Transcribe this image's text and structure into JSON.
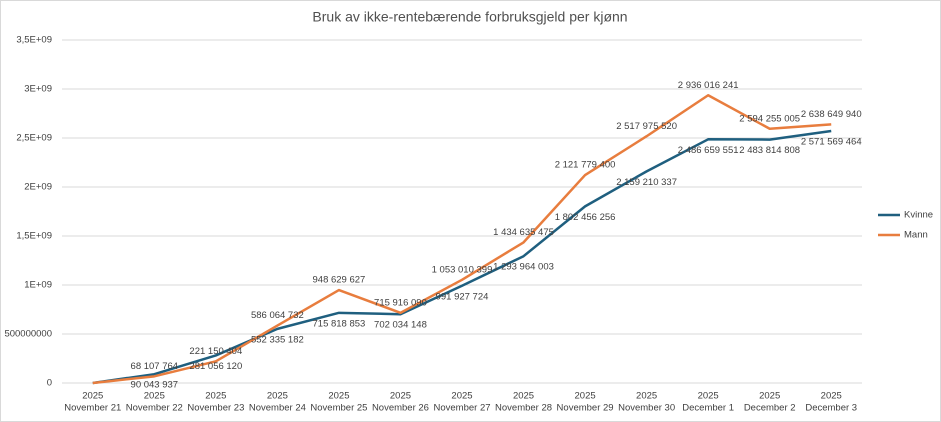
{
  "chart_data": {
    "type": "line",
    "title": "Bruk av ikke-rentebærende forbruksgjeld per kjønn",
    "categories": [
      [
        "2025",
        "November 21"
      ],
      [
        "2025",
        "November 22"
      ],
      [
        "2025",
        "November 23"
      ],
      [
        "2025",
        "November 24"
      ],
      [
        "2025",
        "November 25"
      ],
      [
        "2025",
        "November 26"
      ],
      [
        "2025",
        "November 27"
      ],
      [
        "2025",
        "November 28"
      ],
      [
        "2025",
        "November 29"
      ],
      [
        "2025",
        "November 30"
      ],
      [
        "2025",
        "December 1"
      ],
      [
        "2025",
        "December 2"
      ],
      [
        "2025",
        "December 3"
      ]
    ],
    "series": [
      {
        "name": "Kvinne",
        "color": "#1f5f7f",
        "label_position": "below",
        "values": [
          0,
          90043937,
          281056120,
          552335182,
          715818853,
          702034148,
          991927724,
          1293964003,
          1802456256,
          2159210337,
          2486659551,
          2483814808,
          2571569464
        ],
        "value_labels": [
          null,
          "90 043 937",
          "281 056 120",
          "552 335 182",
          "715 818 853",
          "702 034 148",
          "991 927 724",
          "1 293 964 003",
          "1 802 456 256",
          "2 159 210 337",
          "2 486 659 551",
          "2 483 814 808",
          "2 571 569 464"
        ]
      },
      {
        "name": "Mann",
        "color": "#e87d3e",
        "label_position": "above",
        "values": [
          0,
          68107764,
          221150404,
          586064732,
          948629627,
          715916090,
          1053010399,
          1434635475,
          2121779400,
          2517975520,
          2936016241,
          2594255005,
          2638649940
        ],
        "value_labels": [
          null,
          "68 107 764",
          "221 150 404",
          "586 064 732",
          "948 629 627",
          "715 916 090",
          "1 053 010 399",
          "1 434 635 475",
          "2 121 779 400",
          "2 517 975 520",
          "2 936 016 241",
          "2 594 255 005",
          "2 638 649 940"
        ]
      }
    ],
    "ylim": [
      0,
      3500000000
    ],
    "yticks": [
      0,
      500000000,
      {
        "value": 1000000000,
        "label": "1E+09"
      },
      {
        "value": 1500000000,
        "label": "1,5E+09"
      },
      {
        "value": 2000000000,
        "label": "2E+09"
      },
      {
        "value": 2500000000,
        "label": "2,5E+09"
      },
      {
        "value": 3000000000,
        "label": "3E+09"
      },
      {
        "value": 3500000000,
        "label": "3,5E+09"
      }
    ],
    "grid": true,
    "legend": "right"
  }
}
